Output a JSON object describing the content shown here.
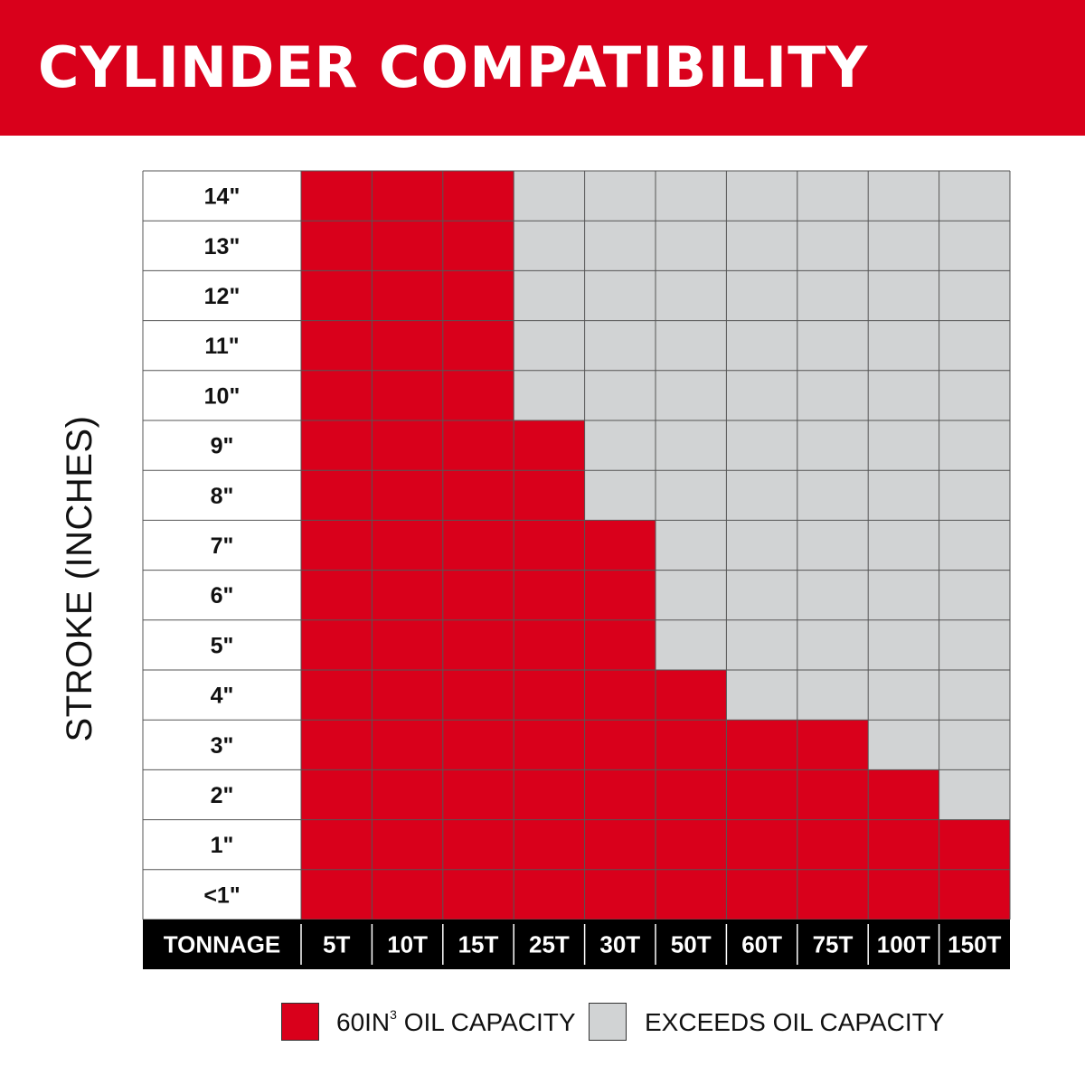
{
  "header": {
    "title": "CYLINDER COMPATIBILITY"
  },
  "colors": {
    "accent": "#d9001b",
    "compatible": "#d9001b",
    "exceeds": "#d1d3d4",
    "axis_bar": "#000000"
  },
  "legend": {
    "compatible": {
      "label_main": "60IN",
      "label_sup": "3",
      "label_tail": " OIL CAPACITY",
      "color": "#d9001b"
    },
    "exceeds": {
      "label": "EXCEEDS OIL CAPACITY",
      "color": "#d1d3d4"
    }
  },
  "chart_data": {
    "type": "table",
    "title": "CYLINDER COMPATIBILITY",
    "xlabel": "TONNAGE",
    "ylabel": "STROKE (INCHES)",
    "columns": [
      "5T",
      "10T",
      "15T",
      "25T",
      "30T",
      "50T",
      "60T",
      "75T",
      "100T",
      "150T"
    ],
    "rows": [
      "14\"",
      "13\"",
      "12\"",
      "11\"",
      "10\"",
      "9\"",
      "8\"",
      "7\"",
      "6\"",
      "5\"",
      "4\"",
      "3\"",
      "2\"",
      "1\"",
      "<1\""
    ],
    "max_compatible_row_index_by_column": [
      0,
      0,
      0,
      5,
      7,
      10,
      11,
      11,
      12,
      13
    ],
    "legend": [
      "60IN3 OIL CAPACITY",
      "EXCEEDS OIL CAPACITY"
    ]
  }
}
